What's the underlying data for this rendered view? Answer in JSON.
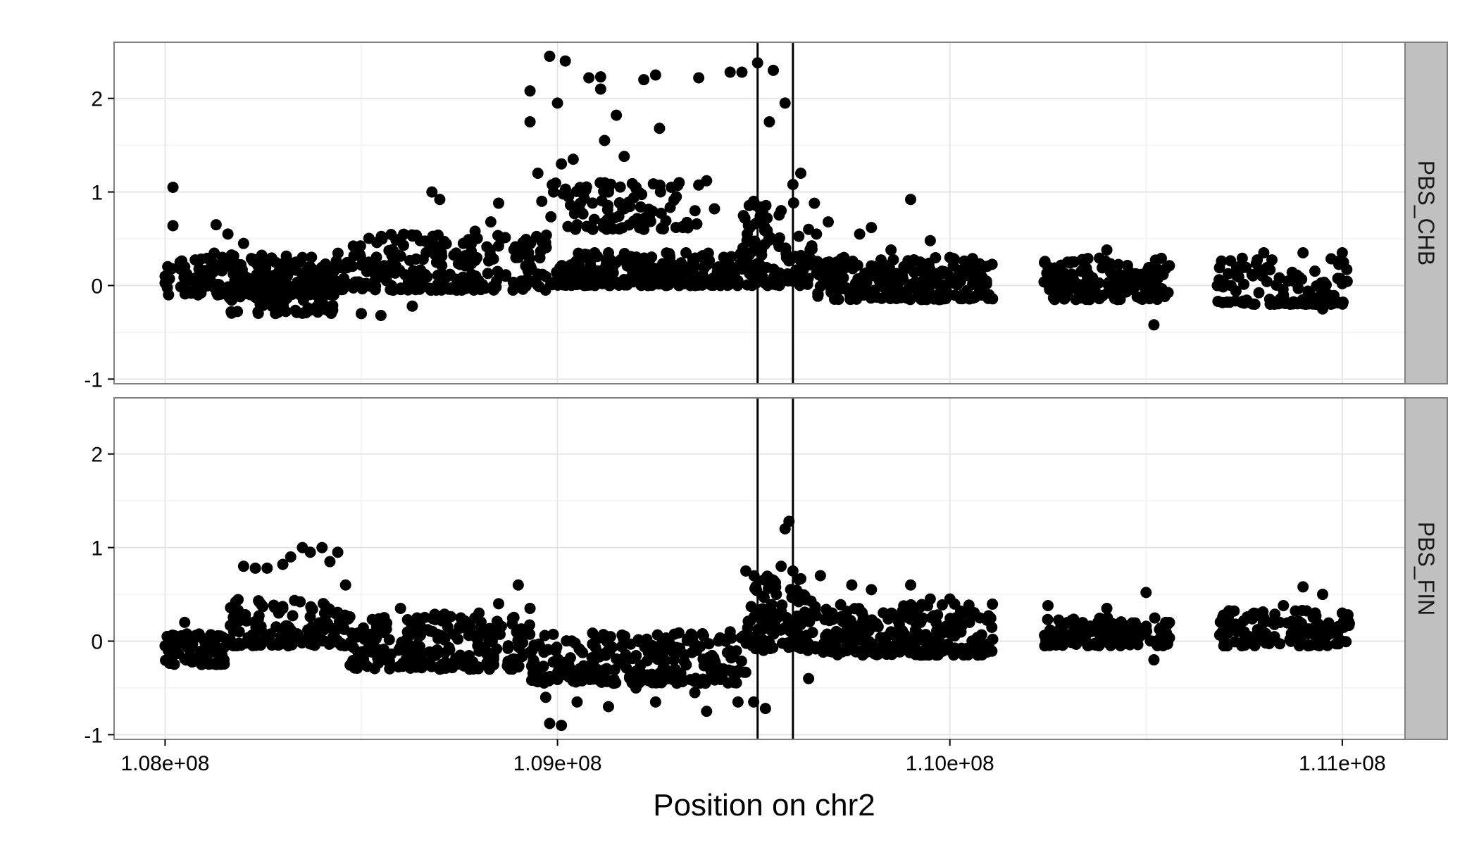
{
  "chart_data": {
    "type": "scatter",
    "xlabel": "Position on chr2",
    "ylabel": "",
    "xlim": [
      107870000,
      111160000
    ],
    "ylim": [
      -1.05,
      2.6
    ],
    "x_ticks": [
      108000000,
      109000000,
      110000000,
      111000000
    ],
    "x_tick_labels": [
      "1.08e+08",
      "1.09e+08",
      "1.10e+08",
      "1.11e+08"
    ],
    "y_ticks": [
      -1,
      0,
      1,
      2
    ],
    "y_tick_labels": [
      "-1",
      "0",
      "1",
      "2"
    ],
    "vlines": [
      109510000,
      109600000
    ],
    "point_color": "#000000",
    "line_color": "#000000",
    "strip_fill": "#c0c0c0",
    "grid": true,
    "panels": [
      {
        "label": "PBS_CHB",
        "points": [
          {
            "x": 108000000,
            "y": 0.1
          },
          {
            "x": 108020000,
            "y": 1.05
          },
          {
            "x": 108020000,
            "y": 0.64
          },
          {
            "x": 108050000,
            "y": 0.2
          },
          {
            "x": 108080000,
            "y": 0.05
          },
          {
            "x": 108130000,
            "y": 0.65
          },
          {
            "x": 108160000,
            "y": 0.55
          },
          {
            "x": 108200000,
            "y": 0.45
          },
          {
            "x": 108250000,
            "y": 0.12
          },
          {
            "x": 108300000,
            "y": -0.2
          },
          {
            "x": 108350000,
            "y": 0.3
          },
          {
            "x": 108400000,
            "y": -0.25
          },
          {
            "x": 108450000,
            "y": 0.05
          },
          {
            "x": 108500000,
            "y": -0.3
          },
          {
            "x": 108550000,
            "y": -0.32
          },
          {
            "x": 108600000,
            "y": 0.5
          },
          {
            "x": 108630000,
            "y": -0.22
          },
          {
            "x": 108650000,
            "y": 0.48
          },
          {
            "x": 108680000,
            "y": 1.0
          },
          {
            "x": 108700000,
            "y": 0.92
          },
          {
            "x": 108720000,
            "y": 0.1
          },
          {
            "x": 108760000,
            "y": 0.45
          },
          {
            "x": 108790000,
            "y": 0.58
          },
          {
            "x": 108830000,
            "y": 0.68
          },
          {
            "x": 108850000,
            "y": 0.88
          },
          {
            "x": 108900000,
            "y": 0.3
          },
          {
            "x": 108950000,
            "y": 0.1
          },
          {
            "x": 109000000,
            "y": 0.05
          },
          {
            "x": 109050000,
            "y": 0.65
          },
          {
            "x": 109090000,
            "y": 0.6
          },
          {
            "x": 109130000,
            "y": 0.35
          },
          {
            "x": 109170000,
            "y": 0.82
          },
          {
            "x": 109210000,
            "y": 0.7
          },
          {
            "x": 109250000,
            "y": 0.18
          },
          {
            "x": 109300000,
            "y": 0.2
          },
          {
            "x": 109350000,
            "y": 0.05
          },
          {
            "x": 109400000,
            "y": 0.82
          },
          {
            "x": 108930000,
            "y": 1.75
          },
          {
            "x": 108930000,
            "y": 2.08
          },
          {
            "x": 108950000,
            "y": 1.2
          },
          {
            "x": 108960000,
            "y": 0.9
          },
          {
            "x": 108980000,
            "y": 2.45
          },
          {
            "x": 108990000,
            "y": 1.0
          },
          {
            "x": 109000000,
            "y": 1.95
          },
          {
            "x": 109010000,
            "y": 1.3
          },
          {
            "x": 109020000,
            "y": 2.4
          },
          {
            "x": 109040000,
            "y": 1.35
          },
          {
            "x": 109060000,
            "y": 1.0
          },
          {
            "x": 109080000,
            "y": 2.22
          },
          {
            "x": 109110000,
            "y": 2.23
          },
          {
            "x": 109110000,
            "y": 2.1
          },
          {
            "x": 109120000,
            "y": 1.55
          },
          {
            "x": 109130000,
            "y": 1.0
          },
          {
            "x": 109150000,
            "y": 1.82
          },
          {
            "x": 109170000,
            "y": 1.38
          },
          {
            "x": 109200000,
            "y": 1.05
          },
          {
            "x": 109220000,
            "y": 2.2
          },
          {
            "x": 109250000,
            "y": 2.25
          },
          {
            "x": 109260000,
            "y": 1.68
          },
          {
            "x": 109290000,
            "y": 1.05
          },
          {
            "x": 109310000,
            "y": 1.1
          },
          {
            "x": 109360000,
            "y": 2.22
          },
          {
            "x": 109380000,
            "y": 1.12
          },
          {
            "x": 109440000,
            "y": 2.28
          },
          {
            "x": 109470000,
            "y": 2.28
          },
          {
            "x": 109500000,
            "y": 0.9
          },
          {
            "x": 109510000,
            "y": 2.38
          },
          {
            "x": 109540000,
            "y": 1.75
          },
          {
            "x": 109550000,
            "y": 2.3
          },
          {
            "x": 109570000,
            "y": 0.8
          },
          {
            "x": 109580000,
            "y": 1.95
          },
          {
            "x": 109600000,
            "y": 1.08
          },
          {
            "x": 109620000,
            "y": 1.2
          },
          {
            "x": 109640000,
            "y": 0.6
          },
          {
            "x": 109660000,
            "y": 0.55
          },
          {
            "x": 109690000,
            "y": 0.68
          },
          {
            "x": 109730000,
            "y": 0.3
          },
          {
            "x": 109770000,
            "y": 0.55
          },
          {
            "x": 109800000,
            "y": 0.62
          },
          {
            "x": 109850000,
            "y": 0.38
          },
          {
            "x": 109900000,
            "y": 0.92
          },
          {
            "x": 109950000,
            "y": 0.48
          },
          {
            "x": 110000000,
            "y": 0.3
          },
          {
            "x": 110050000,
            "y": 0.1
          },
          {
            "x": 110250000,
            "y": 0.2
          },
          {
            "x": 110300000,
            "y": 0.25
          },
          {
            "x": 110350000,
            "y": 0.1
          },
          {
            "x": 110400000,
            "y": 0.38
          },
          {
            "x": 110450000,
            "y": 0.05
          },
          {
            "x": 110500000,
            "y": -0.1
          },
          {
            "x": 110520000,
            "y": -0.42
          },
          {
            "x": 110550000,
            "y": 0.18
          },
          {
            "x": 110700000,
            "y": 0.02
          },
          {
            "x": 110750000,
            "y": 0.2
          },
          {
            "x": 110800000,
            "y": 0.35
          },
          {
            "x": 110850000,
            "y": -0.1
          },
          {
            "x": 110900000,
            "y": 0.35
          },
          {
            "x": 110950000,
            "y": -0.25
          },
          {
            "x": 111000000,
            "y": 0.35
          },
          {
            "x": 111000000,
            "y": 0.02
          }
        ]
      },
      {
        "label": "PBS_FIN",
        "points": [
          {
            "x": 108000000,
            "y": -0.05
          },
          {
            "x": 108050000,
            "y": 0.2
          },
          {
            "x": 108100000,
            "y": -0.1
          },
          {
            "x": 108150000,
            "y": -0.2
          },
          {
            "x": 108200000,
            "y": 0.8
          },
          {
            "x": 108230000,
            "y": 0.78
          },
          {
            "x": 108260000,
            "y": 0.78
          },
          {
            "x": 108300000,
            "y": 0.82
          },
          {
            "x": 108320000,
            "y": 0.9
          },
          {
            "x": 108350000,
            "y": 1.0
          },
          {
            "x": 108370000,
            "y": 0.95
          },
          {
            "x": 108400000,
            "y": 1.0
          },
          {
            "x": 108420000,
            "y": 0.85
          },
          {
            "x": 108440000,
            "y": 0.95
          },
          {
            "x": 108460000,
            "y": 0.6
          },
          {
            "x": 108300000,
            "y": 0.35
          },
          {
            "x": 108400000,
            "y": 0.2
          },
          {
            "x": 108500000,
            "y": 0.1
          },
          {
            "x": 108550000,
            "y": -0.2
          },
          {
            "x": 108600000,
            "y": 0.35
          },
          {
            "x": 108650000,
            "y": 0.1
          },
          {
            "x": 108700000,
            "y": -0.3
          },
          {
            "x": 108750000,
            "y": 0.15
          },
          {
            "x": 108800000,
            "y": 0.3
          },
          {
            "x": 108850000,
            "y": 0.4
          },
          {
            "x": 108900000,
            "y": 0.6
          },
          {
            "x": 108930000,
            "y": 0.35
          },
          {
            "x": 108950000,
            "y": -0.3
          },
          {
            "x": 108970000,
            "y": -0.6
          },
          {
            "x": 108980000,
            "y": -0.88
          },
          {
            "x": 109010000,
            "y": -0.9
          },
          {
            "x": 109050000,
            "y": -0.65
          },
          {
            "x": 109100000,
            "y": -0.3
          },
          {
            "x": 109130000,
            "y": -0.7
          },
          {
            "x": 109170000,
            "y": -0.2
          },
          {
            "x": 109200000,
            "y": -0.5
          },
          {
            "x": 109250000,
            "y": -0.65
          },
          {
            "x": 109300000,
            "y": -0.3
          },
          {
            "x": 109350000,
            "y": -0.55
          },
          {
            "x": 109380000,
            "y": -0.75
          },
          {
            "x": 109420000,
            "y": -0.35
          },
          {
            "x": 109460000,
            "y": -0.65
          },
          {
            "x": 109480000,
            "y": 0.75
          },
          {
            "x": 109500000,
            "y": -0.65
          },
          {
            "x": 109530000,
            "y": -0.72
          },
          {
            "x": 109550000,
            "y": 0.2
          },
          {
            "x": 109570000,
            "y": 0.8
          },
          {
            "x": 109580000,
            "y": 1.2
          },
          {
            "x": 109590000,
            "y": 1.28
          },
          {
            "x": 109600000,
            "y": 0.75
          },
          {
            "x": 109620000,
            "y": 0.5
          },
          {
            "x": 109640000,
            "y": -0.4
          },
          {
            "x": 109670000,
            "y": 0.7
          },
          {
            "x": 109700000,
            "y": 0.3
          },
          {
            "x": 109750000,
            "y": 0.6
          },
          {
            "x": 109800000,
            "y": 0.55
          },
          {
            "x": 109850000,
            "y": 0.1
          },
          {
            "x": 109900000,
            "y": 0.6
          },
          {
            "x": 109950000,
            "y": 0.45
          },
          {
            "x": 110000000,
            "y": 0.45
          },
          {
            "x": 110050000,
            "y": 0.2
          },
          {
            "x": 110250000,
            "y": 0.38
          },
          {
            "x": 110300000,
            "y": 0.2
          },
          {
            "x": 110350000,
            "y": 0.1
          },
          {
            "x": 110400000,
            "y": 0.35
          },
          {
            "x": 110450000,
            "y": 0.1
          },
          {
            "x": 110500000,
            "y": 0.52
          },
          {
            "x": 110520000,
            "y": -0.2
          },
          {
            "x": 110550000,
            "y": 0.2
          },
          {
            "x": 110700000,
            "y": 0.0
          },
          {
            "x": 110750000,
            "y": 0.1
          },
          {
            "x": 110800000,
            "y": 0.25
          },
          {
            "x": 110850000,
            "y": 0.38
          },
          {
            "x": 110900000,
            "y": 0.58
          },
          {
            "x": 110950000,
            "y": 0.5
          },
          {
            "x": 111000000,
            "y": 0.3
          },
          {
            "x": 111000000,
            "y": 0.0
          }
        ]
      }
    ],
    "dense_clusters": [
      [
        {
          "x0": 108000000,
          "x1": 108430000,
          "y0": -0.1,
          "y1": 0.35,
          "n": 220
        },
        {
          "x0": 108160000,
          "x1": 108430000,
          "y0": -0.3,
          "y1": 0.0,
          "n": 60
        },
        {
          "x0": 108430000,
          "x1": 108980000,
          "y0": -0.05,
          "y1": 0.55,
          "n": 220
        },
        {
          "x0": 108980000,
          "x1": 109470000,
          "y0": 0.0,
          "y1": 0.35,
          "n": 240
        },
        {
          "x0": 108980000,
          "x1": 109360000,
          "y0": 0.6,
          "y1": 1.1,
          "n": 90
        },
        {
          "x0": 109470000,
          "x1": 109660000,
          "y0": 0.0,
          "y1": 0.9,
          "n": 110
        },
        {
          "x0": 109660000,
          "x1": 110110000,
          "y0": -0.15,
          "y1": 0.3,
          "n": 230
        },
        {
          "x0": 110240000,
          "x1": 110560000,
          "y0": -0.15,
          "y1": 0.3,
          "n": 140
        },
        {
          "x0": 110680000,
          "x1": 111020000,
          "y0": -0.2,
          "y1": 0.3,
          "n": 110
        }
      ],
      [
        {
          "x0": 108000000,
          "x1": 108160000,
          "y0": -0.25,
          "y1": 0.1,
          "n": 90
        },
        {
          "x0": 108160000,
          "x1": 108470000,
          "y0": -0.05,
          "y1": 0.45,
          "n": 140
        },
        {
          "x0": 108470000,
          "x1": 108930000,
          "y0": -0.3,
          "y1": 0.3,
          "n": 200
        },
        {
          "x0": 108930000,
          "x1": 109480000,
          "y0": -0.45,
          "y1": 0.1,
          "n": 260
        },
        {
          "x0": 109480000,
          "x1": 109660000,
          "y0": -0.1,
          "y1": 0.7,
          "n": 110
        },
        {
          "x0": 109660000,
          "x1": 110110000,
          "y0": -0.15,
          "y1": 0.4,
          "n": 230
        },
        {
          "x0": 110240000,
          "x1": 110560000,
          "y0": -0.05,
          "y1": 0.25,
          "n": 140
        },
        {
          "x0": 110680000,
          "x1": 111020000,
          "y0": -0.05,
          "y1": 0.35,
          "n": 110
        }
      ]
    ]
  }
}
